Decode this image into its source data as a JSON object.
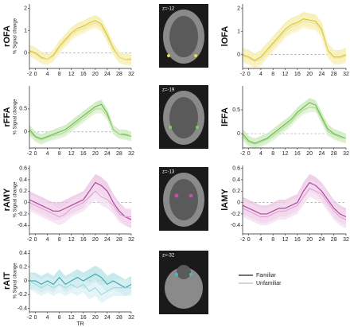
{
  "chart_data": [
    {
      "type": "line",
      "title": "rOFA",
      "ylabel": "% Signal change",
      "x": [
        -2,
        0,
        2,
        4,
        6,
        8,
        10,
        12,
        14,
        16,
        18,
        20,
        22,
        24,
        26,
        28,
        30,
        32
      ],
      "xlim": [
        -2,
        32
      ],
      "xticks": [
        -2,
        0,
        4,
        8,
        12,
        16,
        20,
        24,
        28,
        32
      ],
      "ylim": [
        -0.7,
        2.2
      ],
      "yticks": [
        0,
        1,
        2
      ],
      "series": [
        {
          "name": "Familiar",
          "color": "#d9c53a",
          "band_color": "#f3ea9c",
          "error": 0.25,
          "values": [
            0.1,
            0,
            -0.2,
            -0.3,
            -0.1,
            0.3,
            0.6,
            0.9,
            1.1,
            1.2,
            1.35,
            1.45,
            1.3,
            0.8,
            0.2,
            -0.2,
            -0.3,
            -0.3
          ]
        },
        {
          "name": "Unfamiliar",
          "color": "#eee08a",
          "band_color": "#f8f2c4",
          "error": 0.25,
          "values": [
            0.05,
            -0.05,
            -0.25,
            -0.3,
            -0.15,
            0.2,
            0.5,
            0.8,
            1.0,
            1.1,
            1.25,
            1.35,
            1.2,
            0.7,
            0.15,
            -0.2,
            -0.3,
            -0.25
          ]
        }
      ]
    },
    {
      "type": "line",
      "title": "lOFA",
      "x": [
        -2,
        0,
        2,
        4,
        6,
        8,
        10,
        12,
        14,
        16,
        18,
        20,
        22,
        24,
        26,
        28,
        30,
        32
      ],
      "xlim": [
        -2,
        32
      ],
      "xticks": [
        -2,
        0,
        4,
        8,
        12,
        16,
        20,
        24,
        28,
        32
      ],
      "ylim": [
        -0.6,
        2.2
      ],
      "yticks": [
        0,
        1,
        2
      ],
      "series": [
        {
          "name": "Familiar",
          "color": "#d9c53a",
          "band_color": "#f3ea9c",
          "error": 0.3,
          "values": [
            0,
            -0.1,
            -0.25,
            -0.1,
            0.2,
            0.5,
            0.8,
            1.1,
            1.3,
            1.4,
            1.55,
            1.5,
            1.45,
            1.1,
            0.2,
            -0.1,
            -0.1,
            0
          ]
        },
        {
          "name": "Unfamiliar",
          "color": "#eee08a",
          "band_color": "#f8f2c4",
          "error": 0.3,
          "values": [
            -0.05,
            -0.15,
            -0.3,
            -0.2,
            0.1,
            0.4,
            0.7,
            1.0,
            1.2,
            1.3,
            1.45,
            1.4,
            1.35,
            1.0,
            0.15,
            -0.15,
            -0.15,
            -0.05
          ]
        }
      ]
    },
    {
      "type": "line",
      "title": "rFFA",
      "ylabel": "% Signal change",
      "x": [
        -2,
        0,
        2,
        4,
        6,
        8,
        10,
        12,
        14,
        16,
        18,
        20,
        22,
        24,
        26,
        28,
        30,
        32
      ],
      "xlim": [
        -2,
        32
      ],
      "xticks": [
        -2,
        0,
        4,
        8,
        12,
        16,
        20,
        24,
        28,
        32
      ],
      "ylim": [
        -0.35,
        1.0
      ],
      "yticks": [
        0,
        0.5
      ],
      "series": [
        {
          "name": "Familiar",
          "color": "#6cbf4a",
          "band_color": "#bfe4ad",
          "error": 0.1,
          "values": [
            0.05,
            -0.1,
            -0.15,
            -0.1,
            -0.05,
            0,
            0.05,
            0.15,
            0.25,
            0.35,
            0.45,
            0.55,
            0.6,
            0.4,
            0.05,
            -0.05,
            -0.05,
            -0.1
          ]
        },
        {
          "name": "Unfamiliar",
          "color": "#a7dc8f",
          "band_color": "#dbf0d0",
          "error": 0.1,
          "values": [
            0,
            -0.12,
            -0.18,
            -0.12,
            -0.08,
            -0.05,
            0,
            0.1,
            0.2,
            0.3,
            0.4,
            0.5,
            0.5,
            0.35,
            0.05,
            -0.05,
            -0.08,
            -0.1
          ]
        }
      ]
    },
    {
      "type": "line",
      "title": "lFFA",
      "x": [
        -2,
        0,
        2,
        4,
        6,
        8,
        10,
        12,
        14,
        16,
        18,
        20,
        22,
        24,
        26,
        28,
        30,
        32
      ],
      "xlim": [
        -2,
        32
      ],
      "xticks": [
        -2,
        0,
        4,
        8,
        12,
        16,
        20,
        24,
        28,
        32
      ],
      "ylim": [
        -0.3,
        1.0
      ],
      "yticks": [
        0,
        0.5
      ],
      "series": [
        {
          "name": "Familiar",
          "color": "#6cbf4a",
          "band_color": "#bfe4ad",
          "error": 0.1,
          "values": [
            0,
            -0.15,
            -0.2,
            -0.15,
            -0.1,
            0,
            0.1,
            0.2,
            0.3,
            0.45,
            0.55,
            0.65,
            0.6,
            0.35,
            0.1,
            0,
            -0.05,
            -0.1
          ]
        },
        {
          "name": "Unfamiliar",
          "color": "#a7dc8f",
          "band_color": "#dbf0d0",
          "error": 0.1,
          "values": [
            -0.05,
            -0.18,
            -0.22,
            -0.18,
            -0.12,
            -0.05,
            0.05,
            0.15,
            0.25,
            0.4,
            0.5,
            0.55,
            0.55,
            0.3,
            0.05,
            -0.02,
            -0.08,
            -0.1
          ]
        }
      ]
    },
    {
      "type": "line",
      "title": "rAMY",
      "ylabel": "% Signal change",
      "x": [
        -2,
        0,
        2,
        4,
        6,
        8,
        10,
        12,
        14,
        16,
        18,
        20,
        22,
        24,
        26,
        28,
        30,
        32
      ],
      "xlim": [
        -2,
        32
      ],
      "xticks": [
        -2,
        0,
        4,
        8,
        12,
        16,
        20,
        24,
        28,
        32
      ],
      "ylim": [
        -0.55,
        0.65
      ],
      "yticks": [
        -0.4,
        -0.2,
        0,
        0.2,
        0.4,
        0.6
      ],
      "series": [
        {
          "name": "Familiar",
          "color": "#b0479a",
          "band_color": "#e8bfe0",
          "error": 0.15,
          "values": [
            0.05,
            0,
            -0.05,
            -0.1,
            -0.15,
            -0.15,
            -0.1,
            -0.05,
            0,
            0.05,
            0.2,
            0.35,
            0.3,
            0.2,
            0,
            -0.15,
            -0.25,
            -0.3
          ]
        },
        {
          "name": "Unfamiliar",
          "color": "#dc9bd0",
          "band_color": "#f3dcef",
          "error": 0.15,
          "values": [
            0,
            -0.05,
            -0.1,
            -0.15,
            -0.2,
            -0.25,
            -0.2,
            -0.1,
            -0.05,
            0,
            0.1,
            0.2,
            0.1,
            0.05,
            -0.05,
            -0.2,
            -0.25,
            -0.25
          ]
        }
      ]
    },
    {
      "type": "line",
      "title": "lAMY",
      "x": [
        -2,
        0,
        2,
        4,
        6,
        8,
        10,
        12,
        14,
        16,
        18,
        20,
        22,
        24,
        26,
        28,
        30,
        32
      ],
      "xlim": [
        -2,
        32
      ],
      "xticks": [
        -2,
        0,
        4,
        8,
        12,
        16,
        20,
        24,
        28,
        32
      ],
      "ylim": [
        -0.55,
        0.65
      ],
      "yticks": [
        -0.4,
        -0.2,
        0,
        0.2,
        0.4,
        0.6
      ],
      "series": [
        {
          "name": "Familiar",
          "color": "#b0479a",
          "band_color": "#e8bfe0",
          "error": 0.15,
          "values": [
            -0.05,
            -0.1,
            -0.15,
            -0.2,
            -0.2,
            -0.15,
            -0.1,
            -0.1,
            -0.05,
            0,
            0.2,
            0.35,
            0.3,
            0.2,
            0.05,
            -0.1,
            -0.2,
            -0.25
          ]
        },
        {
          "name": "Unfamiliar",
          "color": "#dc9bd0",
          "band_color": "#f3dcef",
          "error": 0.15,
          "values": [
            -0.1,
            -0.15,
            -0.2,
            -0.25,
            -0.25,
            -0.2,
            -0.15,
            -0.15,
            -0.1,
            -0.05,
            0.1,
            0.25,
            0.2,
            0.15,
            0,
            -0.15,
            -0.25,
            -0.3
          ]
        }
      ]
    },
    {
      "type": "line",
      "title": "rAIT",
      "ylabel": "% Signal change",
      "xlabel": "TR",
      "x": [
        -2,
        0,
        2,
        4,
        6,
        8,
        10,
        12,
        14,
        16,
        18,
        20,
        22,
        24,
        26,
        28,
        30,
        32
      ],
      "xlim": [
        -2,
        32
      ],
      "xticks": [
        -2,
        0,
        4,
        8,
        12,
        16,
        20,
        24,
        28,
        32
      ],
      "ylim": [
        -0.45,
        0.45
      ],
      "yticks": [
        -0.4,
        -0.2,
        0,
        0.2,
        0.4
      ],
      "series": [
        {
          "name": "Familiar",
          "color": "#3aa9b5",
          "band_color": "#b3dfe4",
          "error": 0.12,
          "values": [
            0,
            0,
            -0.05,
            0,
            -0.05,
            0.05,
            -0.05,
            0,
            0.05,
            0,
            0.05,
            0.1,
            0.05,
            -0.05,
            0,
            -0.05,
            -0.1,
            -0.05
          ]
        },
        {
          "name": "Unfamiliar",
          "color": "#8fd4dc",
          "band_color": "#daf0f3",
          "error": 0.12,
          "values": [
            0,
            -0.05,
            -0.1,
            -0.05,
            -0.1,
            -0.05,
            -0.1,
            -0.05,
            -0.1,
            -0.05,
            -0.15,
            -0.1,
            -0.2,
            -0.15,
            -0.1,
            -0.1,
            -0.1,
            -0.1
          ]
        }
      ]
    }
  ],
  "images": [
    {
      "label": "z=-12"
    },
    {
      "label": "z=-19"
    },
    {
      "label": "z=-13"
    },
    {
      "label": "z=-32"
    }
  ]
}
